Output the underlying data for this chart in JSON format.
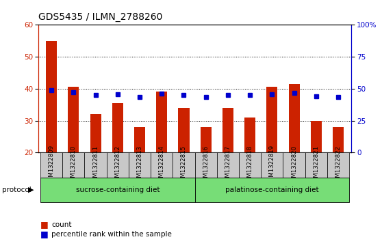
{
  "title": "GDS5435 / ILMN_2788260",
  "samples": [
    "GSM1322809",
    "GSM1322810",
    "GSM1322811",
    "GSM1322812",
    "GSM1322813",
    "GSM1322814",
    "GSM1322815",
    "GSM1322816",
    "GSM1322817",
    "GSM1322818",
    "GSM1322819",
    "GSM1322820",
    "GSM1322821",
    "GSM1322822"
  ],
  "counts": [
    55,
    40.5,
    32,
    35.5,
    28,
    39,
    34,
    28,
    34,
    31,
    40.5,
    41.5,
    30,
    28
  ],
  "percentiles": [
    49,
    47,
    45,
    45.5,
    43.5,
    46,
    45,
    43.5,
    45,
    45,
    45.5,
    46.5,
    44,
    43.5
  ],
  "group1_label": "sucrose-containing diet",
  "group2_label": "palatinose-containing diet",
  "group1_count": 7,
  "group2_count": 7,
  "ylim_left": [
    20,
    60
  ],
  "ylim_right": [
    0,
    100
  ],
  "yticks_left": [
    20,
    30,
    40,
    50,
    60
  ],
  "yticks_right": [
    0,
    25,
    50,
    75,
    100
  ],
  "bar_color": "#CC2200",
  "dot_color": "#0000CC",
  "group1_bg": "#77DD77",
  "group2_bg": "#77DD77",
  "xlabel_bg": "#C8C8C8",
  "legend_count_color": "#CC2200",
  "legend_pct_color": "#0000CC",
  "protocol_label": "protocol",
  "title_fontsize": 10,
  "tick_fontsize": 7.5,
  "bar_width": 0.5
}
